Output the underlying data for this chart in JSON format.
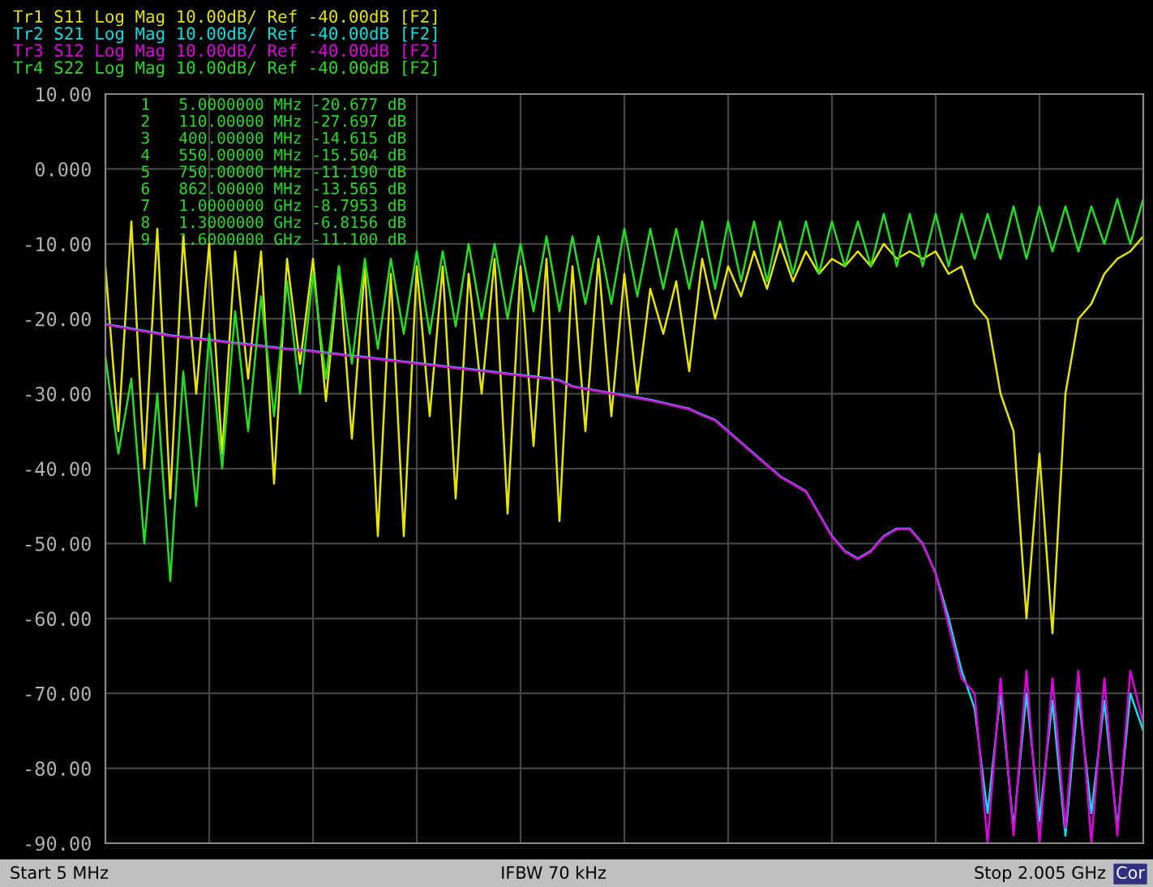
{
  "chart_data": {
    "type": "line",
    "categories": [
      null,
      null,
      null,
      null,
      null,
      null,
      null,
      null,
      null,
      null,
      null,
      null,
      null,
      null,
      null,
      null,
      null,
      null,
      null,
      null,
      null,
      null,
      null,
      null,
      null,
      null,
      null,
      null,
      null,
      null,
      null,
      null,
      null,
      null,
      null,
      null,
      null,
      null,
      null,
      null,
      null,
      null,
      null,
      null,
      null,
      null,
      null,
      null,
      null,
      null,
      null,
      null,
      null,
      null,
      null,
      null,
      null,
      null,
      null,
      null,
      null,
      null,
      null,
      null,
      null,
      null,
      null,
      null,
      null,
      null,
      null,
      null,
      null,
      null,
      null,
      null,
      null,
      null,
      null,
      null,
      null
    ],
    "series": [
      {
        "name": "Tr1 S11 Log Mag 10.00dB/ Ref -40.00dB [F2]",
        "color": "#e6e600",
        "values": [
          -13,
          -35,
          -7,
          -40,
          -8,
          -44,
          -9,
          -30,
          -10,
          -38,
          -11,
          -28,
          -11,
          -42,
          -12,
          -26,
          -12,
          -31,
          -13,
          -36,
          -13,
          -49,
          -14,
          -49,
          -13,
          -33,
          -13,
          -44,
          -14,
          -30,
          -12,
          -46,
          -13,
          -37,
          -12,
          -47,
          -13,
          -35,
          -12,
          -33,
          -14,
          -30,
          -16,
          -22,
          -15,
          -27,
          -12,
          -20,
          -13,
          -17,
          -11,
          -16,
          -10,
          -15,
          -11,
          -14,
          -12,
          -13,
          -11,
          -13,
          -10,
          -12,
          -11,
          -12,
          -11,
          -14,
          -13,
          -18,
          -20,
          -30,
          -35,
          -60,
          -38,
          -62,
          -30,
          -20,
          -18,
          -14,
          -12,
          -11,
          -9
        ]
      },
      {
        "name": "Tr2 S21 Log Mag 10.00dB/ Ref -40.00dB [F2]",
        "color": "#00e5e5",
        "values": [
          -20.7,
          -21,
          -21.3,
          -21.6,
          -21.9,
          -22.2,
          -22.4,
          -22.6,
          -22.8,
          -23,
          -23.2,
          -23.4,
          -23.6,
          -23.8,
          -24,
          -24.1,
          -24.3,
          -24.5,
          -24.7,
          -24.9,
          -25.1,
          -25.3,
          -25.5,
          -25.7,
          -25.9,
          -26.1,
          -26.3,
          -26.5,
          -26.7,
          -26.9,
          -27.1,
          -27.3,
          -27.5,
          -27.7,
          -27.9,
          -28.2,
          -29,
          -29.3,
          -29.6,
          -29.9,
          -30.2,
          -30.5,
          -30.8,
          -31.2,
          -31.6,
          -32,
          -32.8,
          -33.5,
          -35,
          -36.5,
          -38,
          -39.5,
          -41,
          -42,
          -43,
          -46,
          -49,
          -51,
          -52,
          -51,
          -49,
          -48,
          -48,
          -50,
          -54,
          -60,
          -67,
          -72,
          -86,
          -70,
          -88,
          -70,
          -87,
          -71,
          -89,
          -70,
          -86,
          -71,
          -88,
          -70,
          -75
        ]
      },
      {
        "name": "Tr3 S12 Log Mag 10.00dB/ Ref -40.00dB [F2]",
        "color": "#e000e0",
        "values": [
          -20.8,
          -21.1,
          -21.4,
          -21.7,
          -22,
          -22.3,
          -22.5,
          -22.7,
          -22.9,
          -23.1,
          -23.3,
          -23.5,
          -23.7,
          -23.9,
          -24.1,
          -24.2,
          -24.4,
          -24.6,
          -24.8,
          -25,
          -25.2,
          -25.4,
          -25.6,
          -25.8,
          -26,
          -26.2,
          -26.4,
          -26.6,
          -26.8,
          -27,
          -27.2,
          -27.4,
          -27.6,
          -27.8,
          -28,
          -28.3,
          -29.1,
          -29.4,
          -29.7,
          -30,
          -30.3,
          -30.6,
          -30.9,
          -31.3,
          -31.7,
          -32.1,
          -32.9,
          -33.6,
          -35.1,
          -36.6,
          -38.1,
          -39.6,
          -41.1,
          -42.1,
          -43.1,
          -46.1,
          -49.1,
          -51.1,
          -52.1,
          -51.1,
          -49.1,
          -48.1,
          -48.1,
          -50.1,
          -54.1,
          -61,
          -68,
          -70,
          -90,
          -68,
          -89,
          -67,
          -90,
          -68,
          -88,
          -67,
          -90,
          -68,
          -89,
          -67,
          -74
        ]
      },
      {
        "name": "Tr4 S22 Log Mag 10.00dB/ Ref -40.00dB [F2]",
        "color": "#22dd22",
        "values": [
          -25,
          -38,
          -28,
          -50,
          -30,
          -55,
          -27,
          -45,
          -22,
          -40,
          -19,
          -35,
          -17,
          -33,
          -15,
          -30,
          -14,
          -28,
          -13,
          -26,
          -12,
          -24,
          -12,
          -22,
          -11,
          -22,
          -11,
          -21,
          -10,
          -20,
          -10,
          -20,
          -10,
          -19,
          -9,
          -19,
          -9,
          -18,
          -9,
          -18,
          -8,
          -17,
          -8,
          -16,
          -8,
          -16,
          -7,
          -16,
          -7,
          -15,
          -7,
          -15,
          -7,
          -14,
          -7,
          -14,
          -7,
          -13,
          -7,
          -13,
          -6,
          -13,
          -6,
          -13,
          -6,
          -13,
          -6,
          -12,
          -6,
          -12,
          -5,
          -12,
          -5,
          -11,
          -5,
          -11,
          -5,
          -10,
          -4,
          -10,
          -4
        ]
      }
    ],
    "ylim": [
      -90,
      10
    ],
    "yticks": [
      {
        "value": 10,
        "label": "10.00"
      },
      {
        "value": 0,
        "label": "0.000"
      },
      {
        "value": -10,
        "label": "-10.00"
      },
      {
        "value": -20,
        "label": "-20.00"
      },
      {
        "value": -30,
        "label": "-30.00"
      },
      {
        "value": -40,
        "label": "-40.00"
      },
      {
        "value": -50,
        "label": "-50.00"
      },
      {
        "value": -60,
        "label": "-60.00"
      },
      {
        "value": -70,
        "label": "-70.00"
      },
      {
        "value": -80,
        "label": "-80.00"
      },
      {
        "value": -90,
        "label": "-90.00"
      }
    ],
    "tick_labels": "y",
    "grid": true,
    "annotations": [
      "1   5.0000000 MHz -20.677 dB",
      "2   110.00000 MHz -27.697 dB",
      "3   400.00000 MHz -14.615 dB",
      "4   550.00000 MHz -15.504 dB",
      "5   750.00000 MHz -11.190 dB",
      "6   862.00000 MHz -13.565 dB",
      "7   1.0000000 GHz -8.7953 dB",
      "8   1.3000000 GHz -6.8156 dB",
      "9   1.6000000 GHz -11.100 dB",
      "Start 5 MHz",
      "IFBW 70 kHz",
      "Stop 2.005 GHz",
      "Cor"
    ]
  }
}
